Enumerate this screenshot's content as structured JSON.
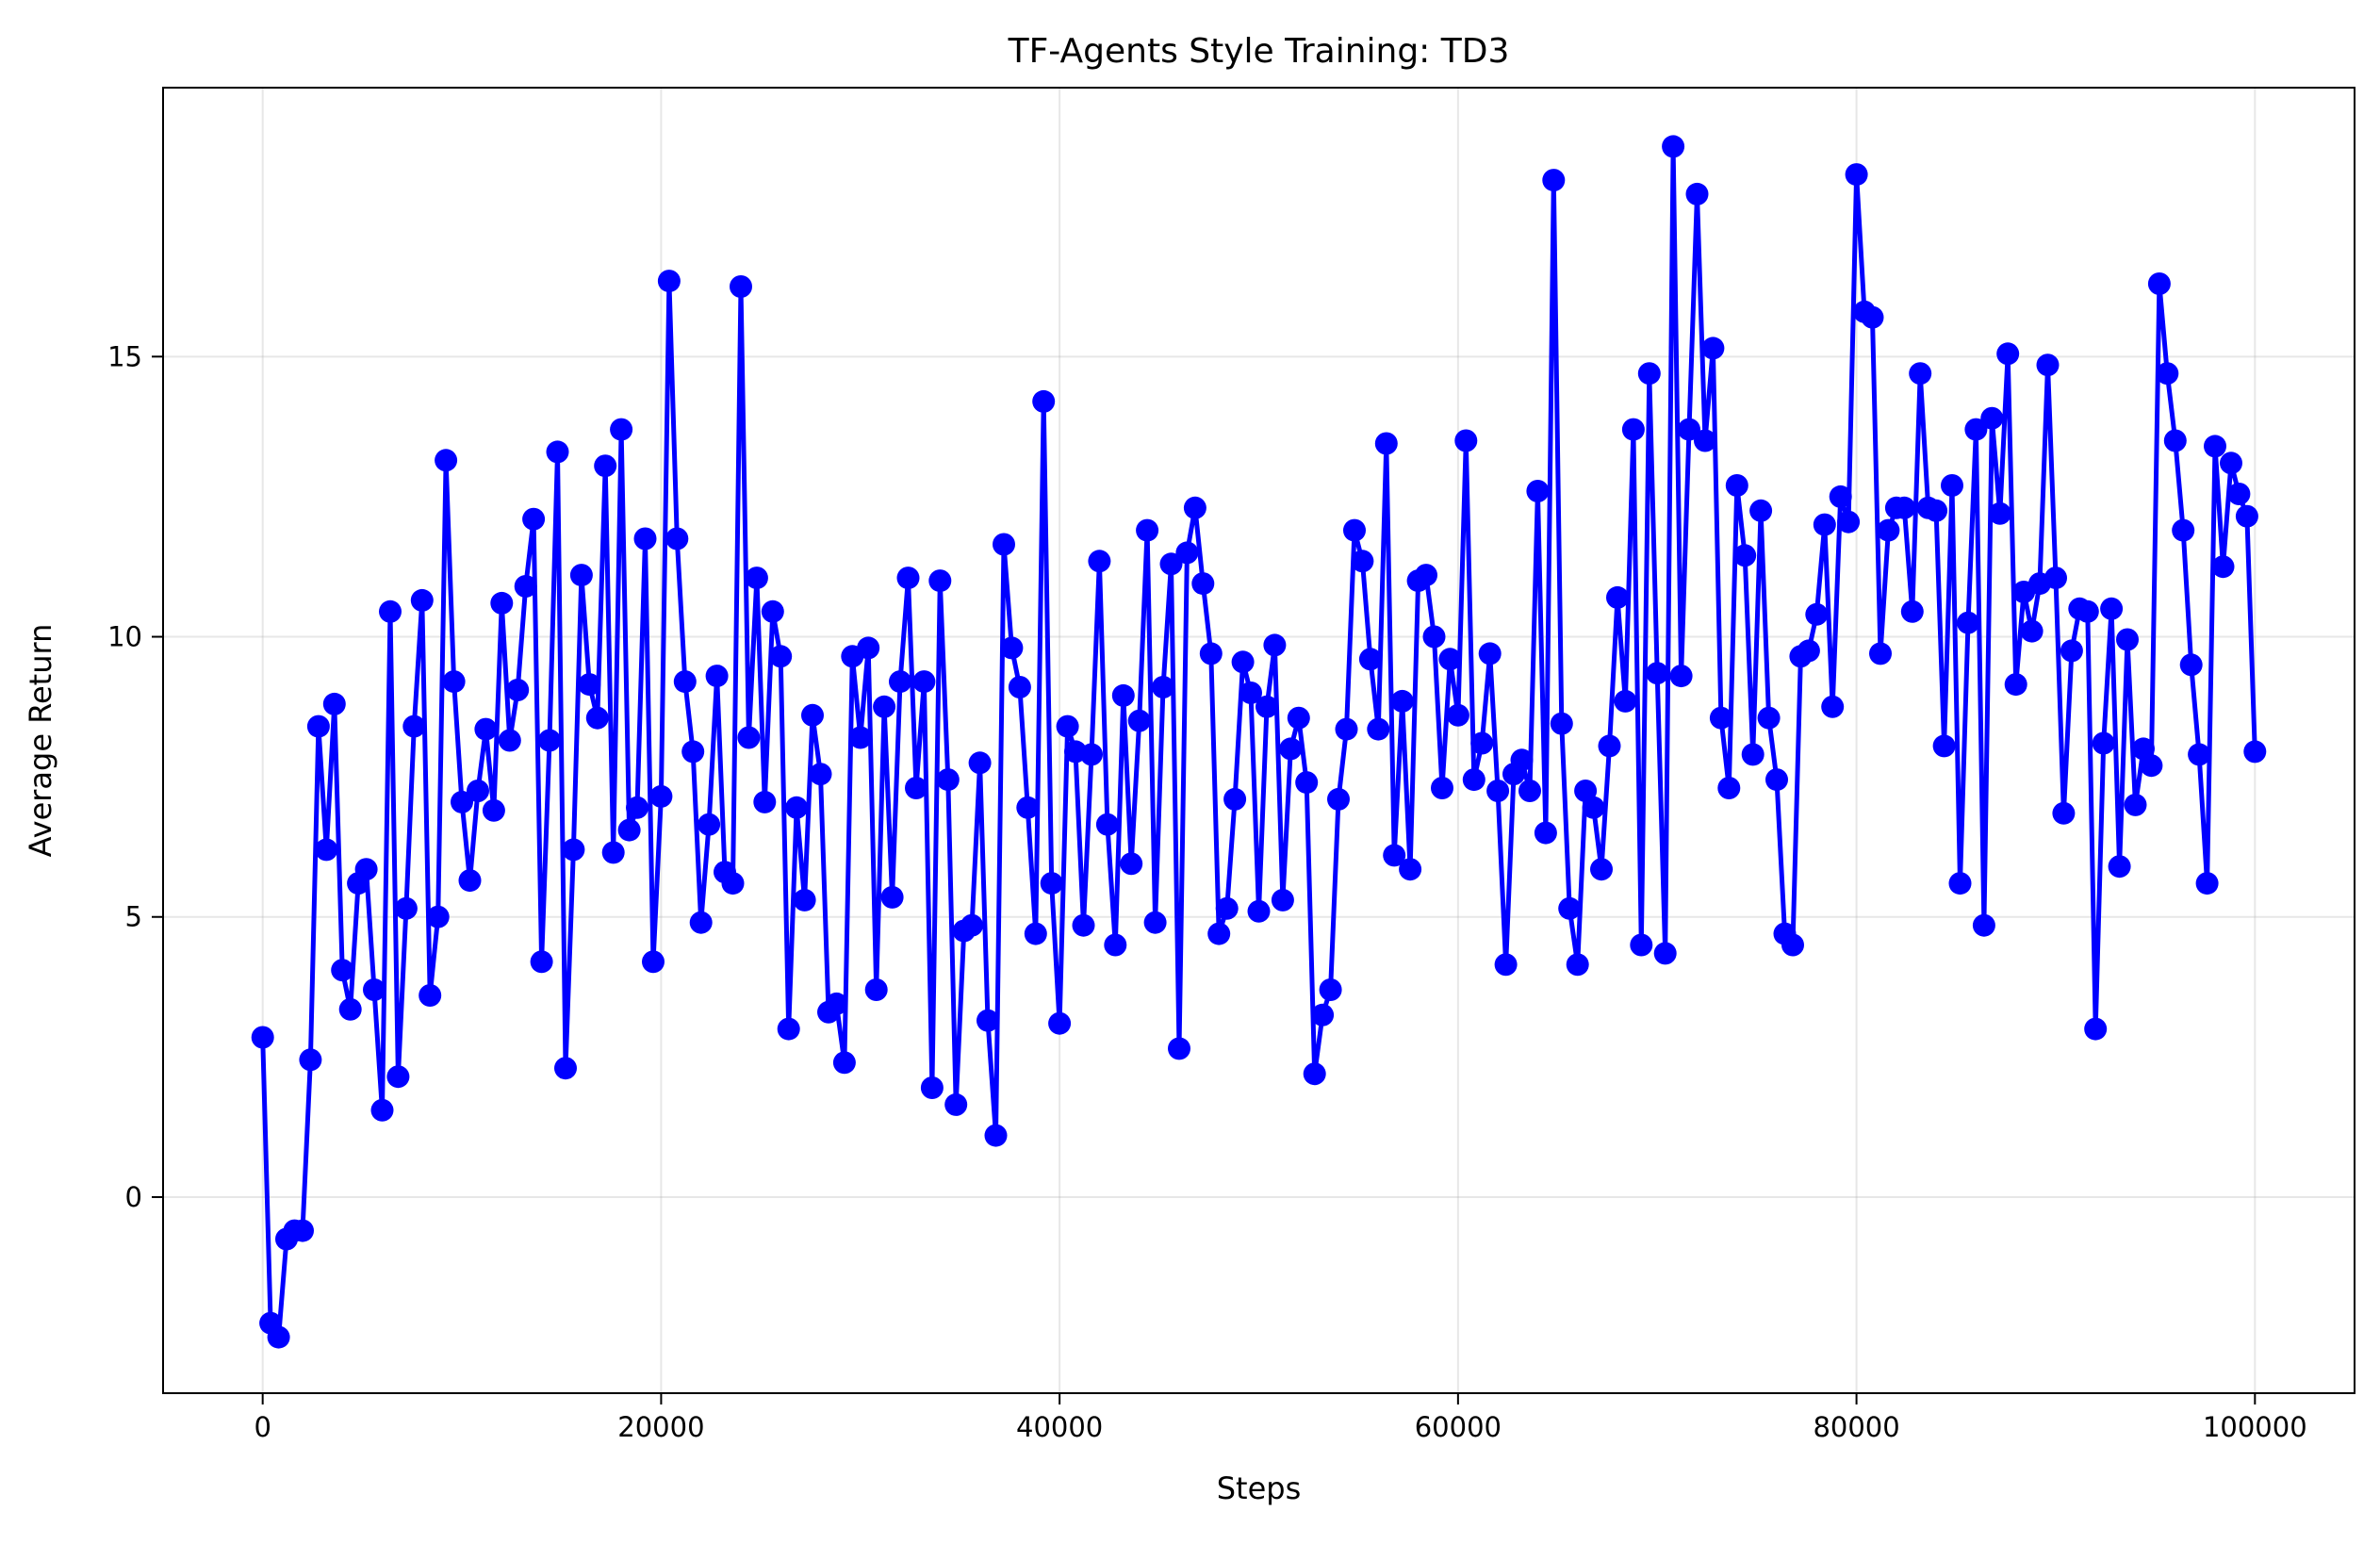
{
  "chart_data": {
    "type": "line",
    "title": "TF-Agents Style Training: TD3",
    "xlabel": "Steps",
    "ylabel": "Average Return",
    "xlim": [
      -5000,
      105000
    ],
    "ylim": [
      -3.5,
      19.8
    ],
    "xticks": [
      0,
      20000,
      40000,
      60000,
      80000,
      100000
    ],
    "xtick_labels": [
      "0",
      "20000",
      "40000",
      "60000",
      "80000",
      "100000"
    ],
    "yticks": [
      0,
      5,
      10,
      15
    ],
    "ytick_labels": [
      "0",
      "5",
      "10",
      "15"
    ],
    "grid": true,
    "legend": "none",
    "line_color": "#0000ff",
    "marker": "circle",
    "series": [
      {
        "x": [
          0,
          400,
          800,
          1200,
          1600,
          2000,
          2400,
          2800,
          3200,
          3600,
          4000,
          4400,
          4800,
          5200,
          5600,
          6000,
          6400,
          6800,
          7200,
          7600,
          8000,
          8400,
          8800,
          9200,
          9600,
          10000,
          10400,
          10800,
          11200,
          11600,
          12000,
          12400,
          12800,
          13200,
          13600,
          14000,
          14400,
          14800,
          15200,
          15600,
          16000,
          16400,
          16800,
          17200,
          17600,
          18000,
          18400,
          18800,
          19200,
          19600,
          20000,
          20400,
          20800,
          21200,
          21600,
          22000,
          22400,
          22800,
          23200,
          23600,
          24000,
          24400,
          24800,
          25200,
          25600,
          26000,
          26400,
          26800,
          27200,
          27600,
          28000,
          28400,
          28800,
          29200,
          29600,
          30000,
          30400,
          30800,
          31200,
          31600,
          32000,
          32400,
          32800,
          33200,
          33600,
          34000,
          34400,
          34800,
          35200,
          35600,
          36000,
          36400,
          36800,
          37200,
          37600,
          38000,
          38400,
          38800,
          39200,
          39600,
          40000,
          40400,
          40800,
          41200,
          41600,
          42000,
          42400,
          42800,
          43200,
          43600,
          44000,
          44400,
          44800,
          45200,
          45600,
          46000,
          46400,
          46800,
          47200,
          47600,
          48000,
          48400,
          48800,
          49200,
          49600,
          50000,
          50400,
          50800,
          51200,
          51600,
          52000,
          52400,
          52800,
          53200,
          53600,
          54000,
          54400,
          54800,
          55200,
          55600,
          56000,
          56400,
          56800,
          57200,
          57600,
          58000,
          58400,
          58800,
          59200,
          59600,
          60000,
          60400,
          60800,
          61200,
          61600,
          62000,
          62400,
          62800,
          63200,
          63600,
          64000,
          64400,
          64800,
          65200,
          65600,
          66000,
          66400,
          66800,
          67200,
          67600,
          68000,
          68400,
          68800,
          69200,
          69600,
          70000,
          70400,
          70800,
          71200,
          71600,
          72000,
          72400,
          72800,
          73200,
          73600,
          74000,
          74400,
          74800,
          75200,
          75600,
          76000,
          76400,
          76800,
          77200,
          77600,
          78000,
          78400,
          78800,
          79200,
          79600,
          80000,
          80400,
          80800,
          81200,
          81600,
          82000,
          82400,
          82800,
          83200,
          83600,
          84000,
          84400,
          84800,
          85200,
          85600,
          86000,
          86400,
          86800,
          87200,
          87600,
          88000,
          88400,
          88800,
          89200,
          89600,
          90000,
          90400,
          90800,
          91200,
          91600,
          92000,
          92400,
          92800,
          93200,
          93600,
          94000,
          94400,
          94800,
          95200,
          95600,
          96000,
          96400,
          96800,
          97200,
          97600,
          98000,
          98400,
          98800,
          99200,
          99600,
          100000
        ],
        "y": [
          2.85,
          -2.25,
          -2.5,
          -0.75,
          -0.6,
          -0.6,
          2.45,
          8.4,
          6.2,
          8.8,
          4.05,
          3.35,
          5.6,
          5.85,
          3.7,
          1.55,
          10.45,
          2.15,
          5.15,
          8.4,
          10.65,
          3.6,
          5.0,
          13.15,
          9.2,
          7.05,
          5.65,
          7.25,
          8.35,
          6.9,
          10.6,
          8.15,
          9.05,
          10.9,
          12.1,
          4.2,
          8.15,
          13.3,
          2.3,
          6.2,
          11.1,
          9.15,
          8.55,
          13.05,
          6.15,
          13.7,
          6.55,
          6.95,
          11.75,
          4.2,
          7.15,
          16.35,
          11.75,
          9.2,
          7.95,
          4.9,
          6.65,
          9.3,
          5.8,
          5.6,
          16.25,
          8.2,
          11.05,
          7.05,
          10.45,
          9.65,
          3.0,
          6.95,
          5.3,
          8.6,
          7.55,
          3.3,
          3.45,
          2.4,
          9.65,
          8.2,
          9.8,
          3.7,
          8.75,
          5.35,
          9.2,
          11.05,
          7.3,
          9.2,
          1.95,
          11.0,
          7.45,
          1.65,
          4.75,
          4.85,
          7.75,
          3.15,
          1.1,
          11.65,
          9.8,
          9.1,
          6.95,
          4.7,
          14.2,
          5.6,
          3.1,
          8.4,
          7.95,
          4.85,
          7.9,
          11.35,
          6.65,
          4.5,
          8.95,
          5.95,
          8.5,
          11.9,
          4.9,
          9.1,
          11.3,
          2.65,
          11.5,
          12.3,
          10.95,
          9.7,
          4.7,
          5.15,
          7.1,
          9.55,
          9.0,
          5.1,
          8.75,
          9.85,
          5.3,
          8.0,
          8.55,
          7.4,
          2.2,
          3.25,
          3.7,
          7.1,
          8.35,
          11.9,
          11.35,
          9.6,
          8.35,
          13.45,
          6.1,
          8.85,
          5.85,
          11.0,
          11.1,
          10.0,
          7.3,
          9.6,
          8.6,
          13.5,
          7.45,
          8.1,
          9.7,
          7.25,
          4.15,
          7.55,
          7.8,
          7.25,
          12.6,
          6.5,
          18.15,
          8.45,
          5.15,
          4.15,
          7.25,
          6.95,
          5.85,
          8.05,
          10.7,
          8.85,
          13.7,
          4.5,
          14.7,
          9.35,
          4.35,
          18.75,
          9.3,
          13.7,
          17.9,
          13.5,
          15.15,
          8.55,
          7.3,
          12.7,
          11.45,
          7.9,
          12.25,
          8.55,
          7.45,
          4.7,
          4.5,
          9.65,
          9.75,
          10.4,
          12.0,
          8.75,
          12.5,
          12.05,
          18.25,
          15.8,
          15.7,
          9.7,
          11.9,
          12.3,
          12.3,
          10.45,
          14.7,
          12.3,
          12.25,
          8.05,
          12.7,
          5.6,
          10.25,
          13.7,
          4.85,
          13.9,
          12.2,
          15.05,
          9.15,
          10.8,
          10.1,
          10.95,
          14.85,
          11.05,
          6.85,
          9.75,
          10.5,
          10.45,
          3.0,
          8.1,
          10.5,
          5.9,
          9.95,
          7.0,
          8.0,
          7.7,
          16.3,
          14.7,
          13.5,
          11.9,
          9.5,
          7.9,
          5.6,
          13.4,
          11.25,
          13.1,
          12.55,
          12.15,
          7.95
        ]
      }
    ]
  }
}
